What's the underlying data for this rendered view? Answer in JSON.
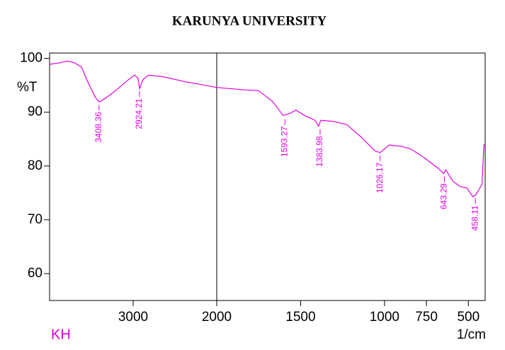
{
  "chart_data": {
    "type": "line",
    "title": "KARUNYA UNIVERSITY",
    "y_label": "%T",
    "x_label": "1/cm",
    "corner_label": "KH",
    "x": [
      4000,
      3873,
      3788,
      3703,
      3619,
      3534,
      3449,
      3407,
      3322,
      3195,
      3068,
      2983,
      2941,
      2924,
      2881,
      2814,
      2644,
      2390,
      2136,
      2000,
      1857,
      1751,
      1667,
      1604,
      1562,
      1528,
      1477,
      1414,
      1393,
      1380,
      1309,
      1225,
      1140,
      1056,
      1027,
      972,
      909,
      846,
      761,
      677,
      647,
      635,
      593,
      550,
      508,
      474,
      457,
      432,
      419,
      407
    ],
    "series": [
      {
        "color": "#e000e0",
        "values": [
          98.9,
          99.2,
          99.5,
          99.2,
          98.4,
          95.3,
          92.7,
          91.9,
          92.7,
          94.2,
          95.9,
          96.9,
          96.3,
          94.4,
          96.1,
          96.9,
          96.6,
          95.7,
          95.0,
          94.6,
          94.2,
          94.0,
          92.0,
          89.4,
          89.8,
          90.4,
          89.4,
          88.5,
          87.4,
          88.5,
          88.3,
          87.7,
          85.4,
          82.8,
          82.5,
          83.9,
          83.7,
          83.2,
          81.5,
          79.5,
          78.6,
          79.3,
          77.2,
          76.2,
          75.9,
          74.3,
          74.6,
          75.9,
          76.6,
          84.1
        ]
      }
    ],
    "xlim": [
      4000,
      400
    ],
    "x_break": 2000,
    "xticks": [
      3000,
      2000,
      1500,
      1000,
      750,
      500
    ],
    "ylim": [
      55,
      101
    ],
    "yticks": [
      60,
      70,
      80,
      90,
      100
    ],
    "peaks": [
      {
        "x": 3408.36,
        "y": 91.9
      },
      {
        "x": 2924.21,
        "y": 94.4
      },
      {
        "x": 1593.27,
        "y": 89.2
      },
      {
        "x": 1383.98,
        "y": 87.4
      },
      {
        "x": 1026.17,
        "y": 82.5
      },
      {
        "x": 643.29,
        "y": 78.6
      },
      {
        "x": 458.11,
        "y": 74.5
      }
    ]
  }
}
